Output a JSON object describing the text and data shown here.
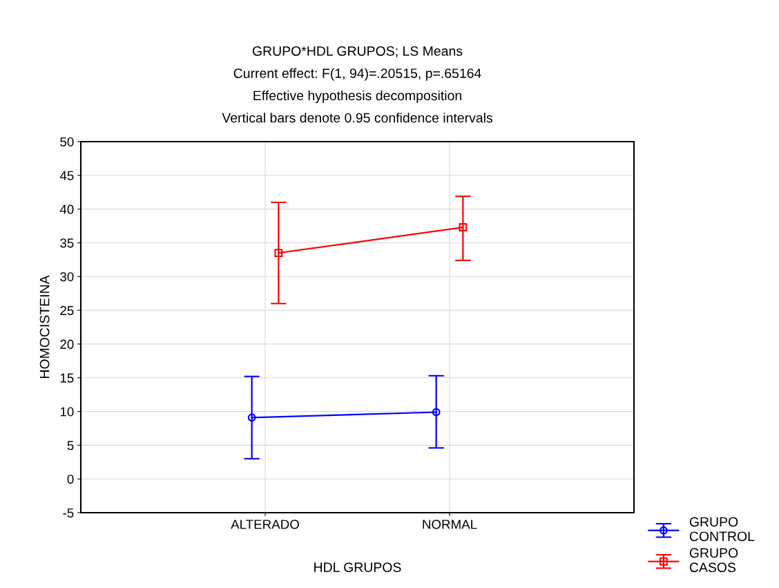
{
  "chart_data": {
    "type": "line",
    "title": "GRUPO*HDL GRUPOS; LS Means\nCurrent effect: F(1, 94)=.20515, p=.65164\nEffective hypothesis decomposition\nVertical bars denote 0.95 confidence intervals",
    "xlabel": "HDL GRUPOS",
    "ylabel": "HOMOCISTEINA",
    "categories": [
      "ALTERADO",
      "NORMAL"
    ],
    "series": [
      {
        "name": "GRUPO\nCONTROL",
        "color": "#0000ff",
        "marker": "circle",
        "values": [
          9.1,
          9.9
        ],
        "errors": [
          [
            3.0,
            15.2
          ],
          [
            4.6,
            15.3
          ]
        ]
      },
      {
        "name": "GRUPO\nCASOS",
        "color": "#ff0000",
        "marker": "square",
        "values": [
          33.5,
          37.3
        ],
        "errors": [
          [
            26.0,
            41.0
          ],
          [
            32.4,
            41.9
          ]
        ]
      }
    ],
    "ylim": [
      -5,
      50
    ],
    "yticks": [
      -5,
      0,
      5,
      10,
      15,
      20,
      25,
      30,
      35,
      40,
      45,
      50
    ],
    "grid": true,
    "legend": "bottom right",
    "line_style": "solid"
  }
}
